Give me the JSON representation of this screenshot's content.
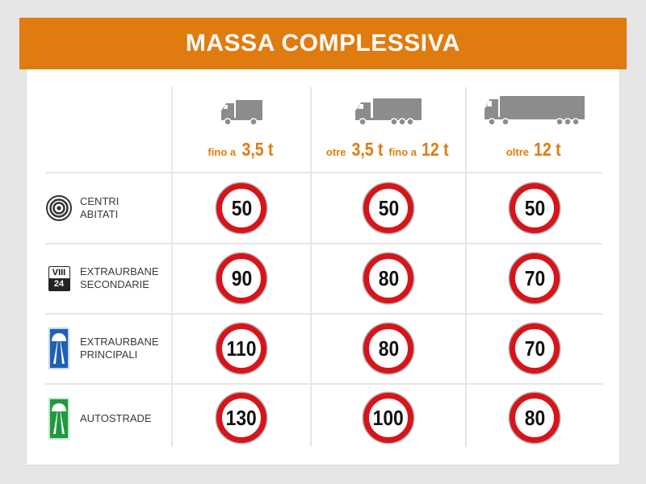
{
  "title": "MASSA COMPLESSIVA",
  "columns": [
    {
      "icon": "small-truck-icon",
      "pre1": "fino a",
      "val1": "3,5 t",
      "pre2": "",
      "val2": ""
    },
    {
      "icon": "medium-truck-icon",
      "pre1": "otre",
      "val1": "3,5 t",
      "pre2": "fino a",
      "val2": "12 t"
    },
    {
      "icon": "large-truck-trailer-icon",
      "pre1": "oltre",
      "val1": "12 t",
      "pre2": "",
      "val2": ""
    }
  ],
  "rows": [
    {
      "icon": "urban-area-sign-icon",
      "label_line1": "CENTRI",
      "label_line2": "ABITATI",
      "limits": [
        "50",
        "50",
        "50"
      ]
    },
    {
      "icon": "secondary-road-sign-icon",
      "sign_top": "VIII",
      "sign_bottom": "24",
      "label_line1": "EXTRAURBANE",
      "label_line2": "SECONDARIE",
      "limits": [
        "90",
        "80",
        "70"
      ]
    },
    {
      "icon": "main-road-sign-icon",
      "label_line1": "EXTRAURBANE",
      "label_line2": "PRINCIPALI",
      "limits": [
        "110",
        "80",
        "70"
      ]
    },
    {
      "icon": "motorway-sign-icon",
      "label_line1": "AUTOSTRADE",
      "label_line2": "",
      "limits": [
        "130",
        "100",
        "80"
      ]
    }
  ],
  "colors": {
    "accent": "#e07b10",
    "sign_red": "#d7141a",
    "truck_gray": "#8c8c8c",
    "blue_sign": "#1f5fb4",
    "green_sign": "#1f9a3e"
  }
}
